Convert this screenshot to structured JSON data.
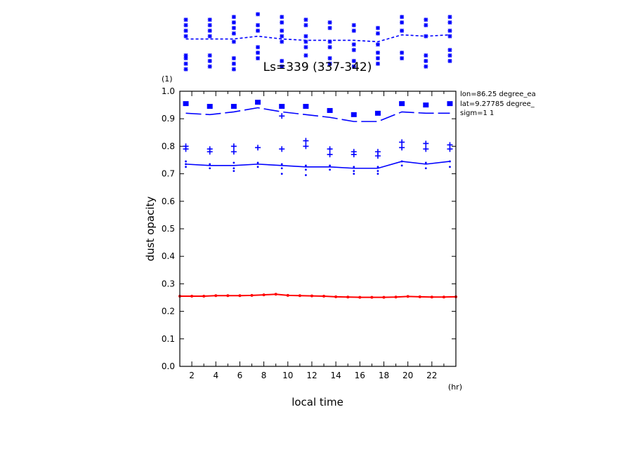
{
  "chart_data": {
    "type": "line",
    "title": "Ls=339 (337-342)",
    "xlabel": "local time",
    "ylabel": "dust opacity",
    "x_unit": "(hr)",
    "y_unit": "(1)",
    "xlim": [
      1,
      24
    ],
    "ylim": [
      0.0,
      1.0
    ],
    "xticks": [
      2,
      4,
      6,
      8,
      10,
      12,
      14,
      16,
      18,
      20,
      22
    ],
    "yticks": [
      0.0,
      0.1,
      0.2,
      0.3,
      0.4,
      0.5,
      0.6,
      0.7,
      0.8,
      0.9,
      1.0
    ],
    "ytick_labels": [
      "0.0",
      "0.1",
      "0.2",
      "0.3",
      "0.4",
      "0.5",
      "0.6",
      "0.7",
      "0.8",
      "0.9",
      "1.0"
    ],
    "info_lines": [
      "lon=86.25 degree_ea",
      "lat=9.27785 degree_",
      "sigm=1 1"
    ],
    "colors": {
      "obs": "#0000ff",
      "model": "#ff0000"
    },
    "series": [
      {
        "style": "solid",
        "color": "#0000ff",
        "x": [
          1.5,
          3.5,
          5.5,
          7.5,
          9.5,
          11.5,
          13.5,
          15.5,
          17.5,
          19.5,
          21.5,
          23.5
        ],
        "y": [
          0.735,
          0.73,
          0.73,
          0.735,
          0.73,
          0.725,
          0.725,
          0.72,
          0.72,
          0.745,
          0.735,
          0.745
        ]
      },
      {
        "style": "long-dash",
        "color": "#0000ff",
        "x": [
          1.5,
          3.5,
          5.5,
          7.5,
          9.5,
          11.5,
          13.5,
          15.5,
          17.5,
          19.5,
          21.5,
          23.5
        ],
        "y": [
          0.92,
          0.915,
          0.925,
          0.94,
          0.925,
          0.915,
          0.905,
          0.89,
          0.89,
          0.925,
          0.92,
          0.92
        ]
      },
      {
        "style": "short-dash",
        "color": "#0000ff",
        "x": [
          1.5,
          3.5,
          5.5,
          7.5,
          9.5,
          11.5,
          13.5,
          15.5,
          17.5,
          19.5,
          21.5,
          23.5
        ],
        "y": [
          1.19,
          1.19,
          1.19,
          1.2,
          1.19,
          1.185,
          1.185,
          1.185,
          1.18,
          1.205,
          1.2,
          1.205
        ]
      },
      {
        "style": "solid-markers",
        "color": "#ff0000",
        "x": [
          1,
          2,
          3,
          4,
          5,
          6,
          7,
          8,
          9,
          10,
          11,
          12,
          13,
          14,
          15,
          16,
          17,
          18,
          19,
          20,
          21,
          22,
          23,
          24
        ],
        "y": [
          0.255,
          0.255,
          0.255,
          0.257,
          0.257,
          0.257,
          0.258,
          0.26,
          0.262,
          0.258,
          0.257,
          0.256,
          0.255,
          0.253,
          0.252,
          0.251,
          0.251,
          0.251,
          0.252,
          0.254,
          0.253,
          0.252,
          0.252,
          0.253
        ]
      }
    ],
    "scatter": [
      {
        "marker": "plus",
        "x": 1.5,
        "y": [
          0.8,
          0.79
        ]
      },
      {
        "marker": "plus",
        "x": 3.5,
        "y": [
          0.79,
          0.78
        ]
      },
      {
        "marker": "plus",
        "x": 5.5,
        "y": [
          0.8,
          0.78
        ]
      },
      {
        "marker": "plus",
        "x": 7.5,
        "y": [
          0.795
        ]
      },
      {
        "marker": "plus",
        "x": 9.5,
        "y": [
          0.79
        ]
      },
      {
        "marker": "plus",
        "x": 11.5,
        "y": [
          0.82,
          0.8
        ]
      },
      {
        "marker": "plus",
        "x": 13.5,
        "y": [
          0.79,
          0.77
        ]
      },
      {
        "marker": "plus",
        "x": 15.5,
        "y": [
          0.78,
          0.77
        ]
      },
      {
        "marker": "plus",
        "x": 17.5,
        "y": [
          0.78,
          0.765
        ]
      },
      {
        "marker": "plus",
        "x": 19.5,
        "y": [
          0.815,
          0.795
        ]
      },
      {
        "marker": "plus",
        "x": 21.5,
        "y": [
          0.81,
          0.79
        ]
      },
      {
        "marker": "plus",
        "x": 23.5,
        "y": [
          0.805,
          0.79
        ]
      },
      {
        "marker": "dot",
        "x": 1.5,
        "y": [
          0.745,
          0.735,
          0.725
        ]
      },
      {
        "marker": "dot",
        "x": 3.5,
        "y": [
          0.735,
          0.72
        ]
      },
      {
        "marker": "dot",
        "x": 5.5,
        "y": [
          0.74,
          0.72,
          0.71
        ]
      },
      {
        "marker": "dot",
        "x": 7.5,
        "y": [
          0.74,
          0.725
        ]
      },
      {
        "marker": "dot",
        "x": 9.5,
        "y": [
          0.735,
          0.72,
          0.7
        ]
      },
      {
        "marker": "dot",
        "x": 11.5,
        "y": [
          0.73,
          0.715,
          0.695
        ]
      },
      {
        "marker": "dot",
        "x": 13.5,
        "y": [
          0.73,
          0.715
        ]
      },
      {
        "marker": "dot",
        "x": 15.5,
        "y": [
          0.725,
          0.71,
          0.7
        ]
      },
      {
        "marker": "dot",
        "x": 17.5,
        "y": [
          0.725,
          0.71,
          0.7
        ]
      },
      {
        "marker": "dot",
        "x": 19.5,
        "y": [
          0.745,
          0.73
        ]
      },
      {
        "marker": "dot",
        "x": 21.5,
        "y": [
          0.74,
          0.72
        ]
      },
      {
        "marker": "dot",
        "x": 23.5,
        "y": [
          0.745,
          0.725
        ]
      },
      {
        "marker": "square",
        "x": 1.5,
        "y": [
          0.955
        ]
      },
      {
        "marker": "square",
        "x": 3.5,
        "y": [
          0.945
        ]
      },
      {
        "marker": "square",
        "x": 5.5,
        "y": [
          0.945
        ]
      },
      {
        "marker": "square",
        "x": 7.5,
        "y": [
          0.96
        ]
      },
      {
        "marker": "square",
        "x": 9.5,
        "y": [
          0.945
        ]
      },
      {
        "marker": "square",
        "x": 11.5,
        "y": [
          0.945
        ]
      },
      {
        "marker": "square",
        "x": 13.5,
        "y": [
          0.93
        ]
      },
      {
        "marker": "square",
        "x": 15.5,
        "y": [
          0.915
        ]
      },
      {
        "marker": "square",
        "x": 17.5,
        "y": [
          0.92
        ]
      },
      {
        "marker": "square",
        "x": 19.5,
        "y": [
          0.955
        ]
      },
      {
        "marker": "square",
        "x": 21.5,
        "y": [
          0.95
        ]
      },
      {
        "marker": "square",
        "x": 23.5,
        "y": [
          0.955
        ]
      },
      {
        "marker": "plus",
        "x": 9.5,
        "y": [
          0.91
        ]
      },
      {
        "marker": "star",
        "x": 1.5,
        "y": [
          1.26,
          1.24,
          1.22,
          1.2,
          1.13,
          1.12,
          1.1,
          1.08
        ]
      },
      {
        "marker": "star",
        "x": 3.5,
        "y": [
          1.26,
          1.24,
          1.22,
          1.2,
          1.13,
          1.11,
          1.09
        ]
      },
      {
        "marker": "star",
        "x": 5.5,
        "y": [
          1.27,
          1.25,
          1.23,
          1.21,
          1.18,
          1.12,
          1.1,
          1.08
        ]
      },
      {
        "marker": "star",
        "x": 7.5,
        "y": [
          1.28,
          1.24,
          1.22,
          1.16,
          1.14,
          1.12
        ]
      },
      {
        "marker": "star",
        "x": 9.5,
        "y": [
          1.27,
          1.25,
          1.22,
          1.2,
          1.18,
          1.11,
          1.09
        ]
      },
      {
        "marker": "star",
        "x": 11.5,
        "y": [
          1.26,
          1.24,
          1.2,
          1.18,
          1.16,
          1.13
        ]
      },
      {
        "marker": "star",
        "x": 13.5,
        "y": [
          1.25,
          1.23,
          1.18,
          1.16,
          1.12,
          1.1
        ]
      },
      {
        "marker": "star",
        "x": 15.5,
        "y": [
          1.24,
          1.22,
          1.17,
          1.15,
          1.11,
          1.09
        ]
      },
      {
        "marker": "star",
        "x": 17.5,
        "y": [
          1.23,
          1.21,
          1.17,
          1.14,
          1.12,
          1.1
        ]
      },
      {
        "marker": "star",
        "x": 19.5,
        "y": [
          1.27,
          1.25,
          1.22,
          1.14,
          1.12
        ]
      },
      {
        "marker": "star",
        "x": 21.5,
        "y": [
          1.26,
          1.24,
          1.2,
          1.13,
          1.11,
          1.09
        ]
      },
      {
        "marker": "star",
        "x": 23.5,
        "y": [
          1.27,
          1.25,
          1.22,
          1.2,
          1.15,
          1.13,
          1.11
        ]
      }
    ]
  }
}
